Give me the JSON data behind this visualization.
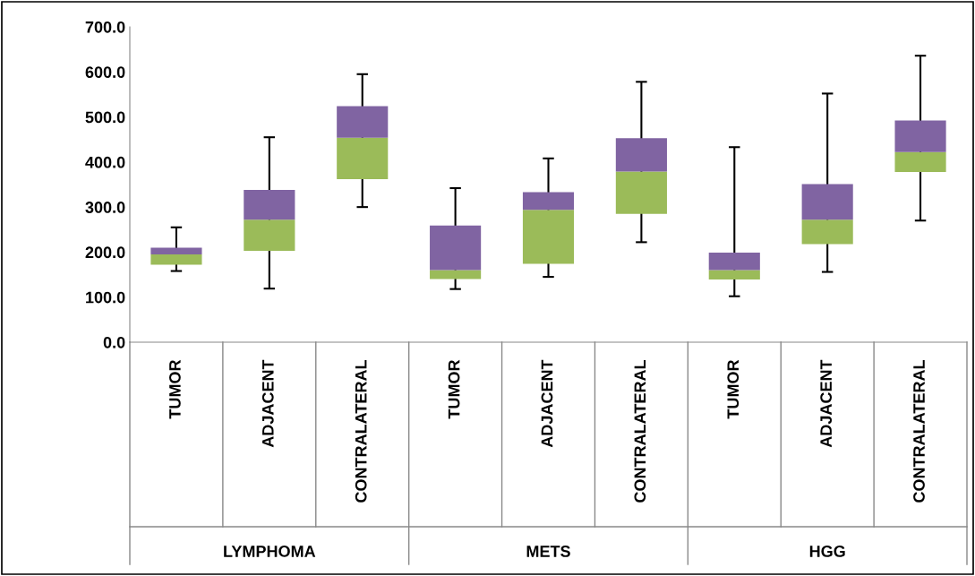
{
  "chart_data": {
    "type": "box",
    "categories": [
      "TUMOR",
      "ADJACENT",
      "CONTRALATERAL",
      "TUMOR",
      "ADJACENT",
      "CONTRALATERAL",
      "TUMOR",
      "ADJACENT",
      "CONTRALATERAL"
    ],
    "series": [
      {
        "color": "#8064a2",
        "colors": [
          "#9bbb59",
          "#9bbb59",
          "#9bbb59",
          "#9bbb59",
          "#9bbb59",
          "#9bbb59",
          "#9bbb59",
          "#9bbb59",
          "#9bbb59"
        ],
        "boxes": [
          {
            "low": 158,
            "q1": 172,
            "median": 195,
            "q3": 210,
            "high": 255
          },
          {
            "low": 119,
            "q1": 203,
            "median": 272,
            "q3": 338,
            "high": 455
          },
          {
            "low": 300,
            "q1": 362,
            "median": 454,
            "q3": 524,
            "high": 595
          },
          {
            "low": 118,
            "q1": 140,
            "median": 160,
            "q3": 259,
            "high": 342
          },
          {
            "low": 145,
            "q1": 174,
            "median": 294,
            "q3": 333,
            "high": 408
          },
          {
            "low": 222,
            "q1": 285,
            "median": 379,
            "q3": 453,
            "high": 578
          },
          {
            "low": 102,
            "q1": 139,
            "median": 160,
            "q3": 199,
            "high": 433
          },
          {
            "low": 156,
            "q1": 218,
            "median": 272,
            "q3": 351,
            "high": 552
          },
          {
            "low": 270,
            "q1": 378,
            "median": 422,
            "q3": 492,
            "high": 636
          }
        ]
      }
    ],
    "annotations": [
      "LYMPHOMA",
      "METS",
      "HGG"
    ],
    "ylim": [
      0,
      700
    ],
    "yticks": [
      {
        "value": 0,
        "label": "0.0"
      },
      {
        "value": 100,
        "label": "100.0"
      },
      {
        "value": 200,
        "label": "200.0"
      },
      {
        "value": 300,
        "label": "300.0"
      },
      {
        "value": 400,
        "label": "400.0"
      },
      {
        "value": 500,
        "label": "500.0"
      },
      {
        "value": 600,
        "label": "600.0"
      },
      {
        "value": 700,
        "label": "700.0"
      }
    ],
    "grid": false,
    "legend": false
  }
}
